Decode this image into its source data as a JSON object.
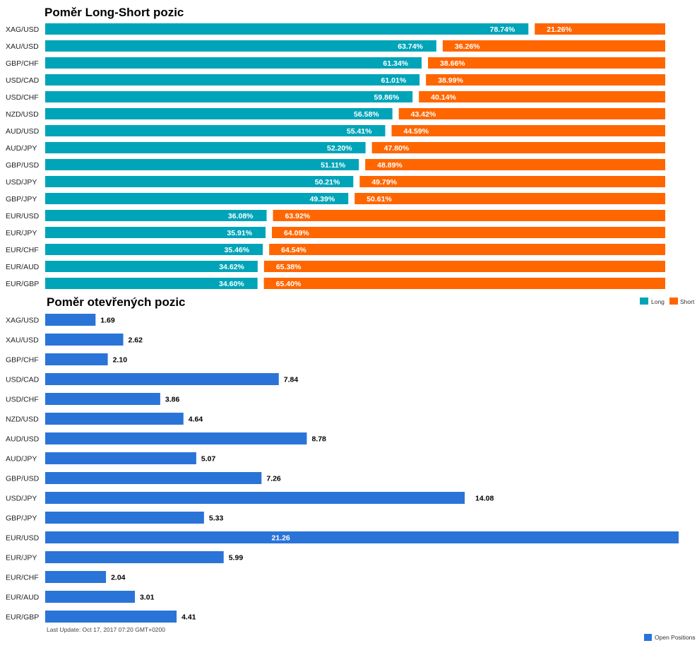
{
  "colors": {
    "long": "#00a4b8",
    "short": "#ff6600",
    "open": "#2a74d8",
    "label_on_bar": "#ffffff",
    "label_outside": "#000000"
  },
  "footer": {
    "last_update": "Last Update: Oct 17, 2017 07:20 GMT+0200"
  },
  "chart_data": [
    {
      "type": "bar",
      "orientation": "horizontal",
      "stacked": true,
      "title": "Poměr Long-Short pozic",
      "categories": [
        "XAG/USD",
        "XAU/USD",
        "GBP/CHF",
        "USD/CAD",
        "USD/CHF",
        "NZD/USD",
        "AUD/USD",
        "AUD/JPY",
        "GBP/USD",
        "USD/JPY",
        "GBP/JPY",
        "EUR/USD",
        "EUR/JPY",
        "EUR/CHF",
        "EUR/AUD",
        "EUR/GBP"
      ],
      "series": [
        {
          "name": "Long",
          "color": "#00a4b8",
          "values": [
            78.74,
            63.74,
            61.34,
            61.01,
            59.86,
            56.58,
            55.41,
            52.2,
            51.11,
            50.21,
            49.39,
            36.08,
            35.91,
            35.46,
            34.62,
            34.6
          ],
          "labels": [
            "78.74%",
            "63.74%",
            "61.34%",
            "61.01%",
            "59.86%",
            "56.58%",
            "55.41%",
            "52.20%",
            "51.11%",
            "50.21%",
            "49.39%",
            "36.08%",
            "35.91%",
            "35.46%",
            "34.62%",
            "34.60%"
          ]
        },
        {
          "name": "Short",
          "color": "#ff6600",
          "values": [
            21.26,
            36.26,
            38.66,
            38.99,
            40.14,
            43.42,
            44.59,
            47.8,
            48.89,
            49.79,
            50.61,
            63.92,
            64.09,
            64.54,
            65.38,
            65.4
          ],
          "labels": [
            "21.26%",
            "36.26%",
            "38.66%",
            "38.99%",
            "40.14%",
            "43.42%",
            "44.59%",
            "47.80%",
            "48.89%",
            "49.79%",
            "50.61%",
            "63.92%",
            "64.09%",
            "64.54%",
            "65.38%",
            "65.40%"
          ]
        }
      ],
      "xlim": [
        0,
        100
      ],
      "grid": false,
      "legend": {
        "position": "bottom-right",
        "entries": [
          "Long",
          "Short"
        ]
      }
    },
    {
      "type": "bar",
      "orientation": "horizontal",
      "title": "Poměr otevřených pozic",
      "categories": [
        "XAG/USD",
        "XAU/USD",
        "GBP/CHF",
        "USD/CAD",
        "USD/CHF",
        "NZD/USD",
        "AUD/USD",
        "AUD/JPY",
        "GBP/USD",
        "USD/JPY",
        "GBP/JPY",
        "EUR/USD",
        "EUR/JPY",
        "EUR/CHF",
        "EUR/AUD",
        "EUR/GBP"
      ],
      "series": [
        {
          "name": "Open Positions",
          "color": "#2a74d8",
          "values": [
            1.69,
            2.62,
            2.1,
            7.84,
            3.86,
            4.64,
            8.78,
            5.07,
            7.26,
            14.08,
            5.33,
            21.26,
            5.99,
            2.04,
            3.01,
            4.41
          ],
          "labels": [
            "1.69",
            "2.62",
            "2.10",
            "7.84",
            "3.86",
            "4.64",
            "8.78",
            "5.07",
            "7.26",
            "14.08",
            "5.33",
            "21.26",
            "5.99",
            "2.04",
            "3.01",
            "4.41"
          ]
        }
      ],
      "xlim": [
        0,
        21.26
      ],
      "grid": false,
      "legend": {
        "position": "bottom-right",
        "entries": [
          "Open Positions"
        ]
      }
    }
  ]
}
